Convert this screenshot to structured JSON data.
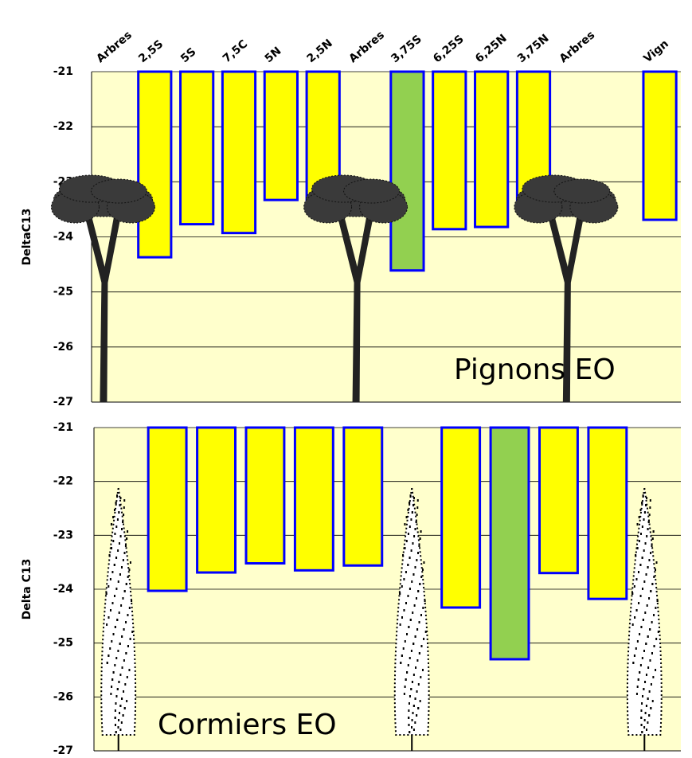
{
  "chart_data": [
    {
      "type": "bar",
      "y_label": "DeltaC13",
      "annotation": "Pignons EO",
      "categories": [
        "Arbres",
        "2,5S",
        "5S",
        "7,5C",
        "5N",
        "2,5N",
        "Arbres",
        "3,75S",
        "6,25S",
        "6,25N",
        "3,75N",
        "Arbres",
        null,
        "Vign"
      ],
      "values": [
        null,
        -24.37,
        -23.77,
        -23.93,
        -23.33,
        -23.4,
        null,
        -24.61,
        -23.86,
        -23.82,
        -23.38,
        null,
        null,
        -23.69
      ],
      "bar_colors": [
        null,
        "#ffff00",
        "#ffff00",
        "#ffff00",
        "#ffff00",
        "#ffff00",
        null,
        "#92d050",
        "#ffff00",
        "#ffff00",
        "#ffff00",
        null,
        null,
        "#ffff00"
      ],
      "edge_color": "#0000ff",
      "ylim": [
        -27,
        -21
      ],
      "yticks": [
        -27,
        -26,
        -25,
        -24,
        -23,
        -22,
        -21
      ],
      "grid": true
    },
    {
      "type": "bar",
      "y_label": "Delta C13",
      "annotation": "Cormiers EO",
      "categories": [
        null,
        null,
        null,
        null,
        null,
        null,
        null,
        null,
        null,
        null,
        null,
        null
      ],
      "values": [
        null,
        -24.03,
        -23.69,
        -23.52,
        -23.65,
        -23.56,
        null,
        -24.34,
        -25.3,
        -23.7,
        -24.18,
        null
      ],
      "bar_colors": [
        null,
        "#ffff00",
        "#ffff00",
        "#ffff00",
        "#ffff00",
        "#ffff00",
        null,
        "#ffff00",
        "#92d050",
        "#ffff00",
        "#ffff00",
        null
      ],
      "edge_color": "#0000ff",
      "ylim": [
        -27,
        -21
      ],
      "yticks": [
        -27,
        -26,
        -25,
        -24,
        -23,
        -22,
        -21
      ],
      "grid": true
    }
  ]
}
